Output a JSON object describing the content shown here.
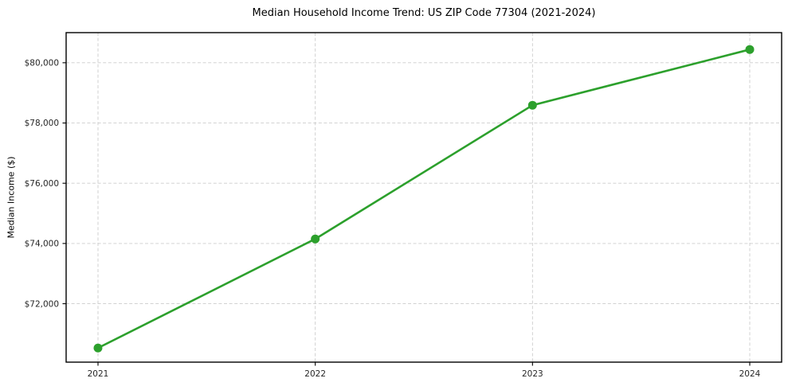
{
  "chart_data": {
    "type": "line",
    "title": "Median Household Income Trend: US ZIP Code 77304 (2021-2024)",
    "xlabel": "",
    "ylabel": "Median Income ($)",
    "categories": [
      "2021",
      "2022",
      "2023",
      "2024"
    ],
    "series": [
      {
        "name": "Median Household Income",
        "values": [
          70530,
          74150,
          78590,
          80440
        ]
      }
    ],
    "yticks": [
      72000,
      74000,
      76000,
      78000,
      80000
    ],
    "ytick_labels": [
      "$72,000",
      "$74,000",
      "$76,000",
      "$78,000",
      "$80,000"
    ],
    "ylim": [
      70060,
      81000
    ],
    "grid": true,
    "legend": "none",
    "colors": {
      "line": "#2ca02c",
      "marker": "#2ca02c",
      "grid": "#cccccc",
      "spine": "#000000",
      "tick_text": "#262626",
      "background": "#ffffff"
    }
  }
}
